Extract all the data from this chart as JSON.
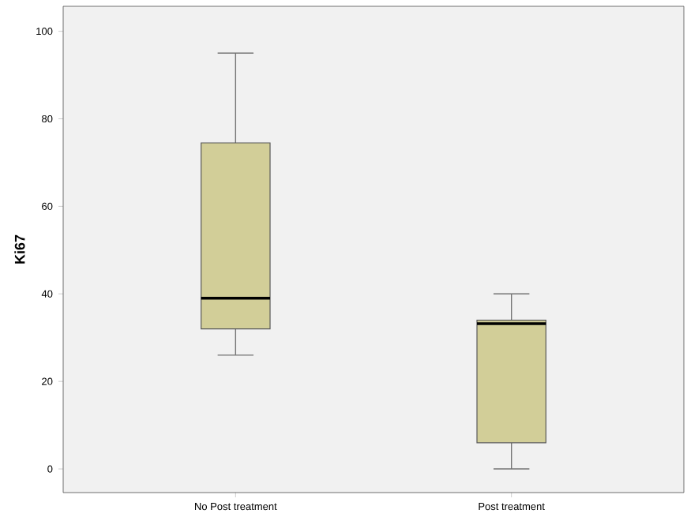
{
  "chart_data": {
    "type": "box",
    "ylabel": "Ki67",
    "categories": [
      "No Post treatment",
      "Post treatment"
    ],
    "boxes": [
      {
        "low": 26,
        "q1": 32,
        "median": 39,
        "q3": 74.5,
        "high": 95
      },
      {
        "low": 0,
        "q1": 6,
        "median": 33.2,
        "q3": 34,
        "high": 40
      }
    ],
    "color": "#d2ce98",
    "ylim": [
      -5.4,
      105.7
    ],
    "yticks": [
      0,
      20,
      40,
      60,
      80,
      100
    ],
    "grid": false
  }
}
